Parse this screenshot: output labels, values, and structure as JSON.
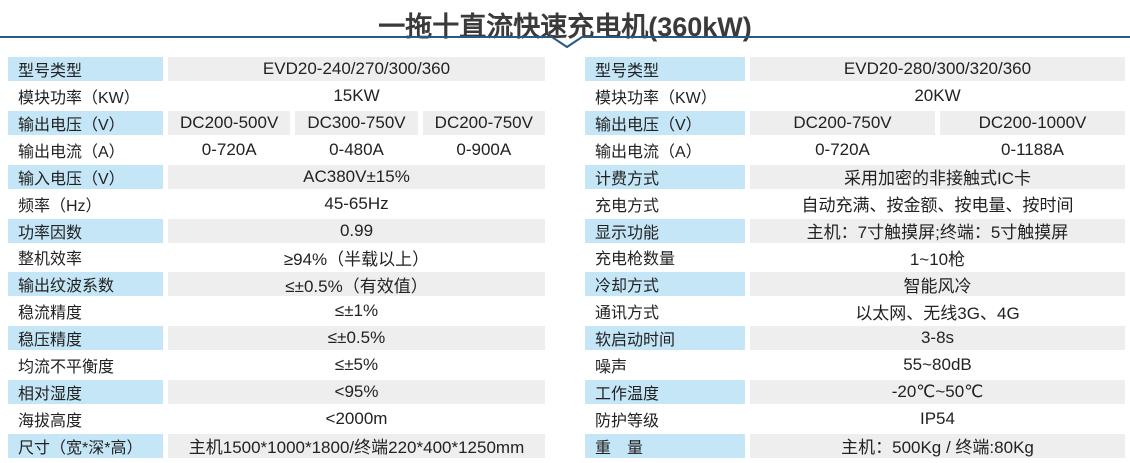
{
  "title": "一拖十直流快速充电机(360kW)",
  "colors": {
    "label_bg": "#c5e6f7",
    "value_bg": "#eeeeee",
    "divider": "#2a5784",
    "text": "#222222",
    "title_text": "#3a3a3a"
  },
  "left_table": {
    "rows": [
      {
        "label": "型号类型",
        "values": [
          "EVD20-240/270/300/360"
        ]
      },
      {
        "label": "模块功率（KW）",
        "values": [
          "15KW"
        ]
      },
      {
        "label": "输出电压（V）",
        "values": [
          "DC200-500V",
          "DC300-750V",
          "DC200-750V"
        ]
      },
      {
        "label": "输出电流（A）",
        "values": [
          "0-720A",
          "0-480A",
          "0-900A"
        ]
      },
      {
        "label": "输入电压（V）",
        "values": [
          "AC380V±15%"
        ]
      },
      {
        "label": "频率（Hz）",
        "values": [
          "45-65Hz"
        ]
      },
      {
        "label": "功率因数",
        "values": [
          "0.99"
        ]
      },
      {
        "label": "整机效率",
        "values": [
          "≥94%（半载以上）"
        ]
      },
      {
        "label": "输出纹波系数",
        "values": [
          "≤±0.5%（有效值）"
        ]
      },
      {
        "label": "稳流精度",
        "values": [
          "≤±1%"
        ]
      },
      {
        "label": "稳压精度",
        "values": [
          "≤±0.5%"
        ]
      },
      {
        "label": "均流不平衡度",
        "values": [
          "≤±5%"
        ]
      },
      {
        "label": "相对湿度",
        "values": [
          "<95%"
        ]
      },
      {
        "label": "海拔高度",
        "values": [
          "<2000m"
        ]
      },
      {
        "label": "尺寸（宽*深*高）",
        "values": [
          "主机1500*1000*1800/终端220*400*1250mm"
        ]
      }
    ]
  },
  "right_table": {
    "rows": [
      {
        "label": "型号类型",
        "values": [
          "EVD20-280/300/320/360"
        ]
      },
      {
        "label": "模块功率（KW）",
        "values": [
          "20KW"
        ]
      },
      {
        "label": "输出电压（V）",
        "values": [
          "DC200-750V",
          "DC200-1000V"
        ]
      },
      {
        "label": "输出电流（A）",
        "values": [
          "0-720A",
          "0-1188A"
        ]
      },
      {
        "label": "计费方式",
        "values": [
          "采用加密的非接触式IC卡"
        ]
      },
      {
        "label": "充电方式",
        "values": [
          "自动充满、按金额、按电量、按时间"
        ]
      },
      {
        "label": "显示功能",
        "values": [
          "主机：7寸触摸屏;终端：5寸触摸屏"
        ]
      },
      {
        "label": "充电枪数量",
        "values": [
          "1~10枪"
        ]
      },
      {
        "label": "冷却方式",
        "values": [
          "智能风冷"
        ]
      },
      {
        "label": "通讯方式",
        "values": [
          "以太网、无线3G、4G"
        ]
      },
      {
        "label": "软启动时间",
        "values": [
          "3-8s"
        ]
      },
      {
        "label": "噪声",
        "values": [
          "55~80dB"
        ]
      },
      {
        "label": "工作温度",
        "values": [
          "-20℃~50℃"
        ]
      },
      {
        "label": "防护等级",
        "values": [
          "IP54"
        ]
      },
      {
        "label": "重　量",
        "values": [
          "主机：500Kg / 终端:80Kg"
        ]
      }
    ]
  }
}
